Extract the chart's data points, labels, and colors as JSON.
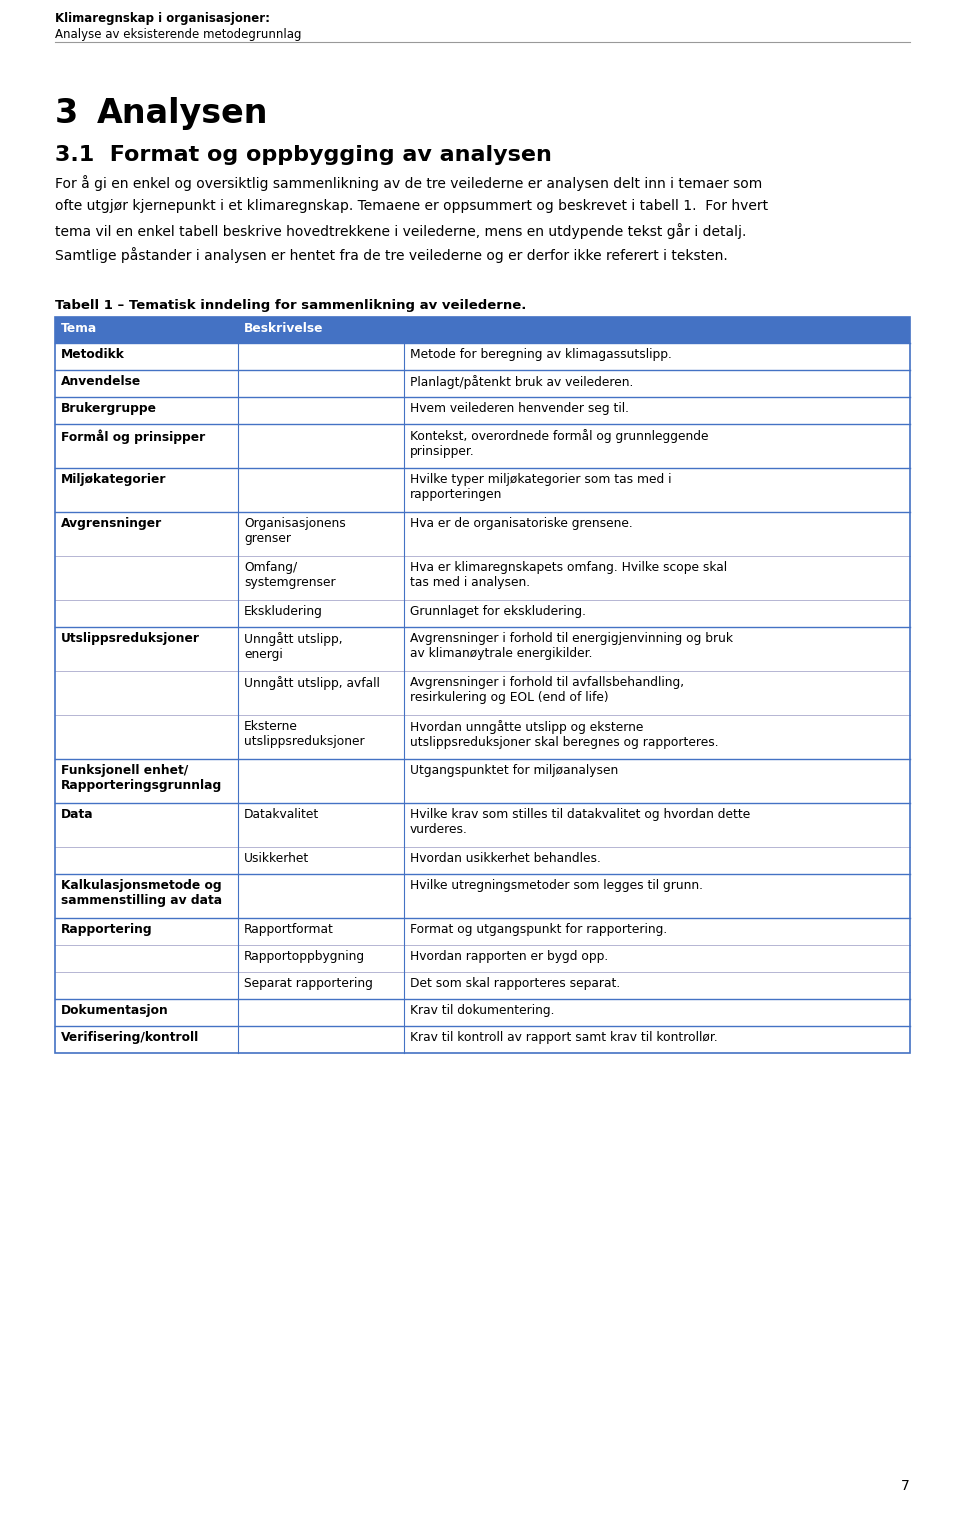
{
  "header_line1": "Klimaregnskap i organisasjoner:",
  "header_line2": "Analyse av eksisterende metodegrunnlag",
  "section_number": "3",
  "section_title": "Analysen",
  "subsection": "3.1  Format og oppbygging av analysen",
  "body_text": [
    "For å gi en enkel og oversiktlig sammenlikning av de tre veilederne er analysen delt inn i temaer som",
    "ofte utgjør kjernepunkt i et klimaregnskap. Temaene er oppsummert og beskrevet i tabell 1.  For hvert",
    "tema vil en enkel tabell beskrive hovedtrekkene i veilederne, mens en utdypende tekst går i detalj.",
    "Samtlige påstander i analysen er hentet fra de tre veilederne og er derfor ikke referert i teksten."
  ],
  "table_caption": "Tabell 1 – Tematisk inndeling for sammenlikning av veilederne.",
  "header_color": "#4472C4",
  "header_text_color": "#FFFFFF",
  "border_color": "#4472C4",
  "page_number": "7",
  "table_rows": [
    {
      "col1": "Tema",
      "col2": "Beskrivelse",
      "col3": "",
      "is_header": true,
      "bold_col1": true
    },
    {
      "col1": "Metodikk",
      "col2": "",
      "col3": "Metode for beregning av klimagassutslipp.",
      "is_header": false,
      "bold_col1": true,
      "group_start": true
    },
    {
      "col1": "Anvendelse",
      "col2": "",
      "col3": "Planlagt/påtenkt bruk av veilederen.",
      "is_header": false,
      "bold_col1": true,
      "group_start": true
    },
    {
      "col1": "Brukergruppe",
      "col2": "",
      "col3": "Hvem veilederen henvender seg til.",
      "is_header": false,
      "bold_col1": true,
      "group_start": true
    },
    {
      "col1": "Formål og prinsipper",
      "col2": "",
      "col3": "Kontekst, overordnede formål og grunnleggende\nprinsipper.",
      "is_header": false,
      "bold_col1": true,
      "group_start": true
    },
    {
      "col1": "Miljøkategorier",
      "col2": "",
      "col3": "Hvilke typer miljøkategorier som tas med i\nrapporteringen",
      "is_header": false,
      "bold_col1": true,
      "group_start": true
    },
    {
      "col1": "Avgrensninger",
      "col2": "Organisasjonens\ngrenser",
      "col3": "Hva er de organisatoriske grensene.",
      "is_header": false,
      "bold_col1": true,
      "group_start": true
    },
    {
      "col1": "",
      "col2": "Omfang/\nsystemgrenser",
      "col3": "Hva er klimaregnskapets omfang. Hvilke scope skal\ntas med i analysen.",
      "is_header": false,
      "bold_col1": false,
      "group_start": false
    },
    {
      "col1": "",
      "col2": "Ekskludering",
      "col3": "Grunnlaget for ekskludering.",
      "is_header": false,
      "bold_col1": false,
      "group_start": false
    },
    {
      "col1": "Utslippsreduksjoner",
      "col2": "Unngått utslipp,\nenergi",
      "col3": "Avgrensninger i forhold til energigjenvinning og bruk\nav klimanøytrale energikilder.",
      "is_header": false,
      "bold_col1": true,
      "group_start": true
    },
    {
      "col1": "",
      "col2": "Unngått utslipp, avfall",
      "col3": "Avgrensninger i forhold til avfallsbehandling,\nresirkulering og EOL (end of life)",
      "is_header": false,
      "bold_col1": false,
      "group_start": false
    },
    {
      "col1": "",
      "col2": "Eksterne\nutslippsreduksjoner",
      "col3": "Hvordan unngåtte utslipp og eksterne\nutslippsreduksjoner skal beregnes og rapporteres.",
      "is_header": false,
      "bold_col1": false,
      "group_start": false
    },
    {
      "col1": "Funksjonell enhet/\nRapporteringsgrunnlag",
      "col2": "",
      "col3": "Utgangspunktet for miljøanalysen",
      "is_header": false,
      "bold_col1": true,
      "group_start": true
    },
    {
      "col1": "Data",
      "col2": "Datakvalitet",
      "col3": "Hvilke krav som stilles til datakvalitet og hvordan dette\nvurderes.",
      "is_header": false,
      "bold_col1": true,
      "group_start": true
    },
    {
      "col1": "",
      "col2": "Usikkerhet",
      "col3": "Hvordan usikkerhet behandles.",
      "is_header": false,
      "bold_col1": false,
      "group_start": false
    },
    {
      "col1": "Kalkulasjonsmetode og\nsammenstilling av data",
      "col2": "",
      "col3": "Hvilke utregningsmetoder som legges til grunn.",
      "is_header": false,
      "bold_col1": true,
      "group_start": true
    },
    {
      "col1": "Rapportering",
      "col2": "Rapportformat",
      "col3": "Format og utgangspunkt for rapportering.",
      "is_header": false,
      "bold_col1": true,
      "group_start": true
    },
    {
      "col1": "",
      "col2": "Rapportoppbygning",
      "col3": "Hvordan rapporten er bygd opp.",
      "is_header": false,
      "bold_col1": false,
      "group_start": false
    },
    {
      "col1": "",
      "col2": "Separat rapportering",
      "col3": "Det som skal rapporteres separat.",
      "is_header": false,
      "bold_col1": false,
      "group_start": false
    },
    {
      "col1": "Dokumentasjon",
      "col2": "",
      "col3": "Krav til dokumentering.",
      "is_header": false,
      "bold_col1": true,
      "group_start": true
    },
    {
      "col1": "Verifisering/kontroll",
      "col2": "",
      "col3": "Krav til kontroll av rapport samt krav til kontrollør.",
      "is_header": false,
      "bold_col1": true,
      "group_start": true
    }
  ]
}
